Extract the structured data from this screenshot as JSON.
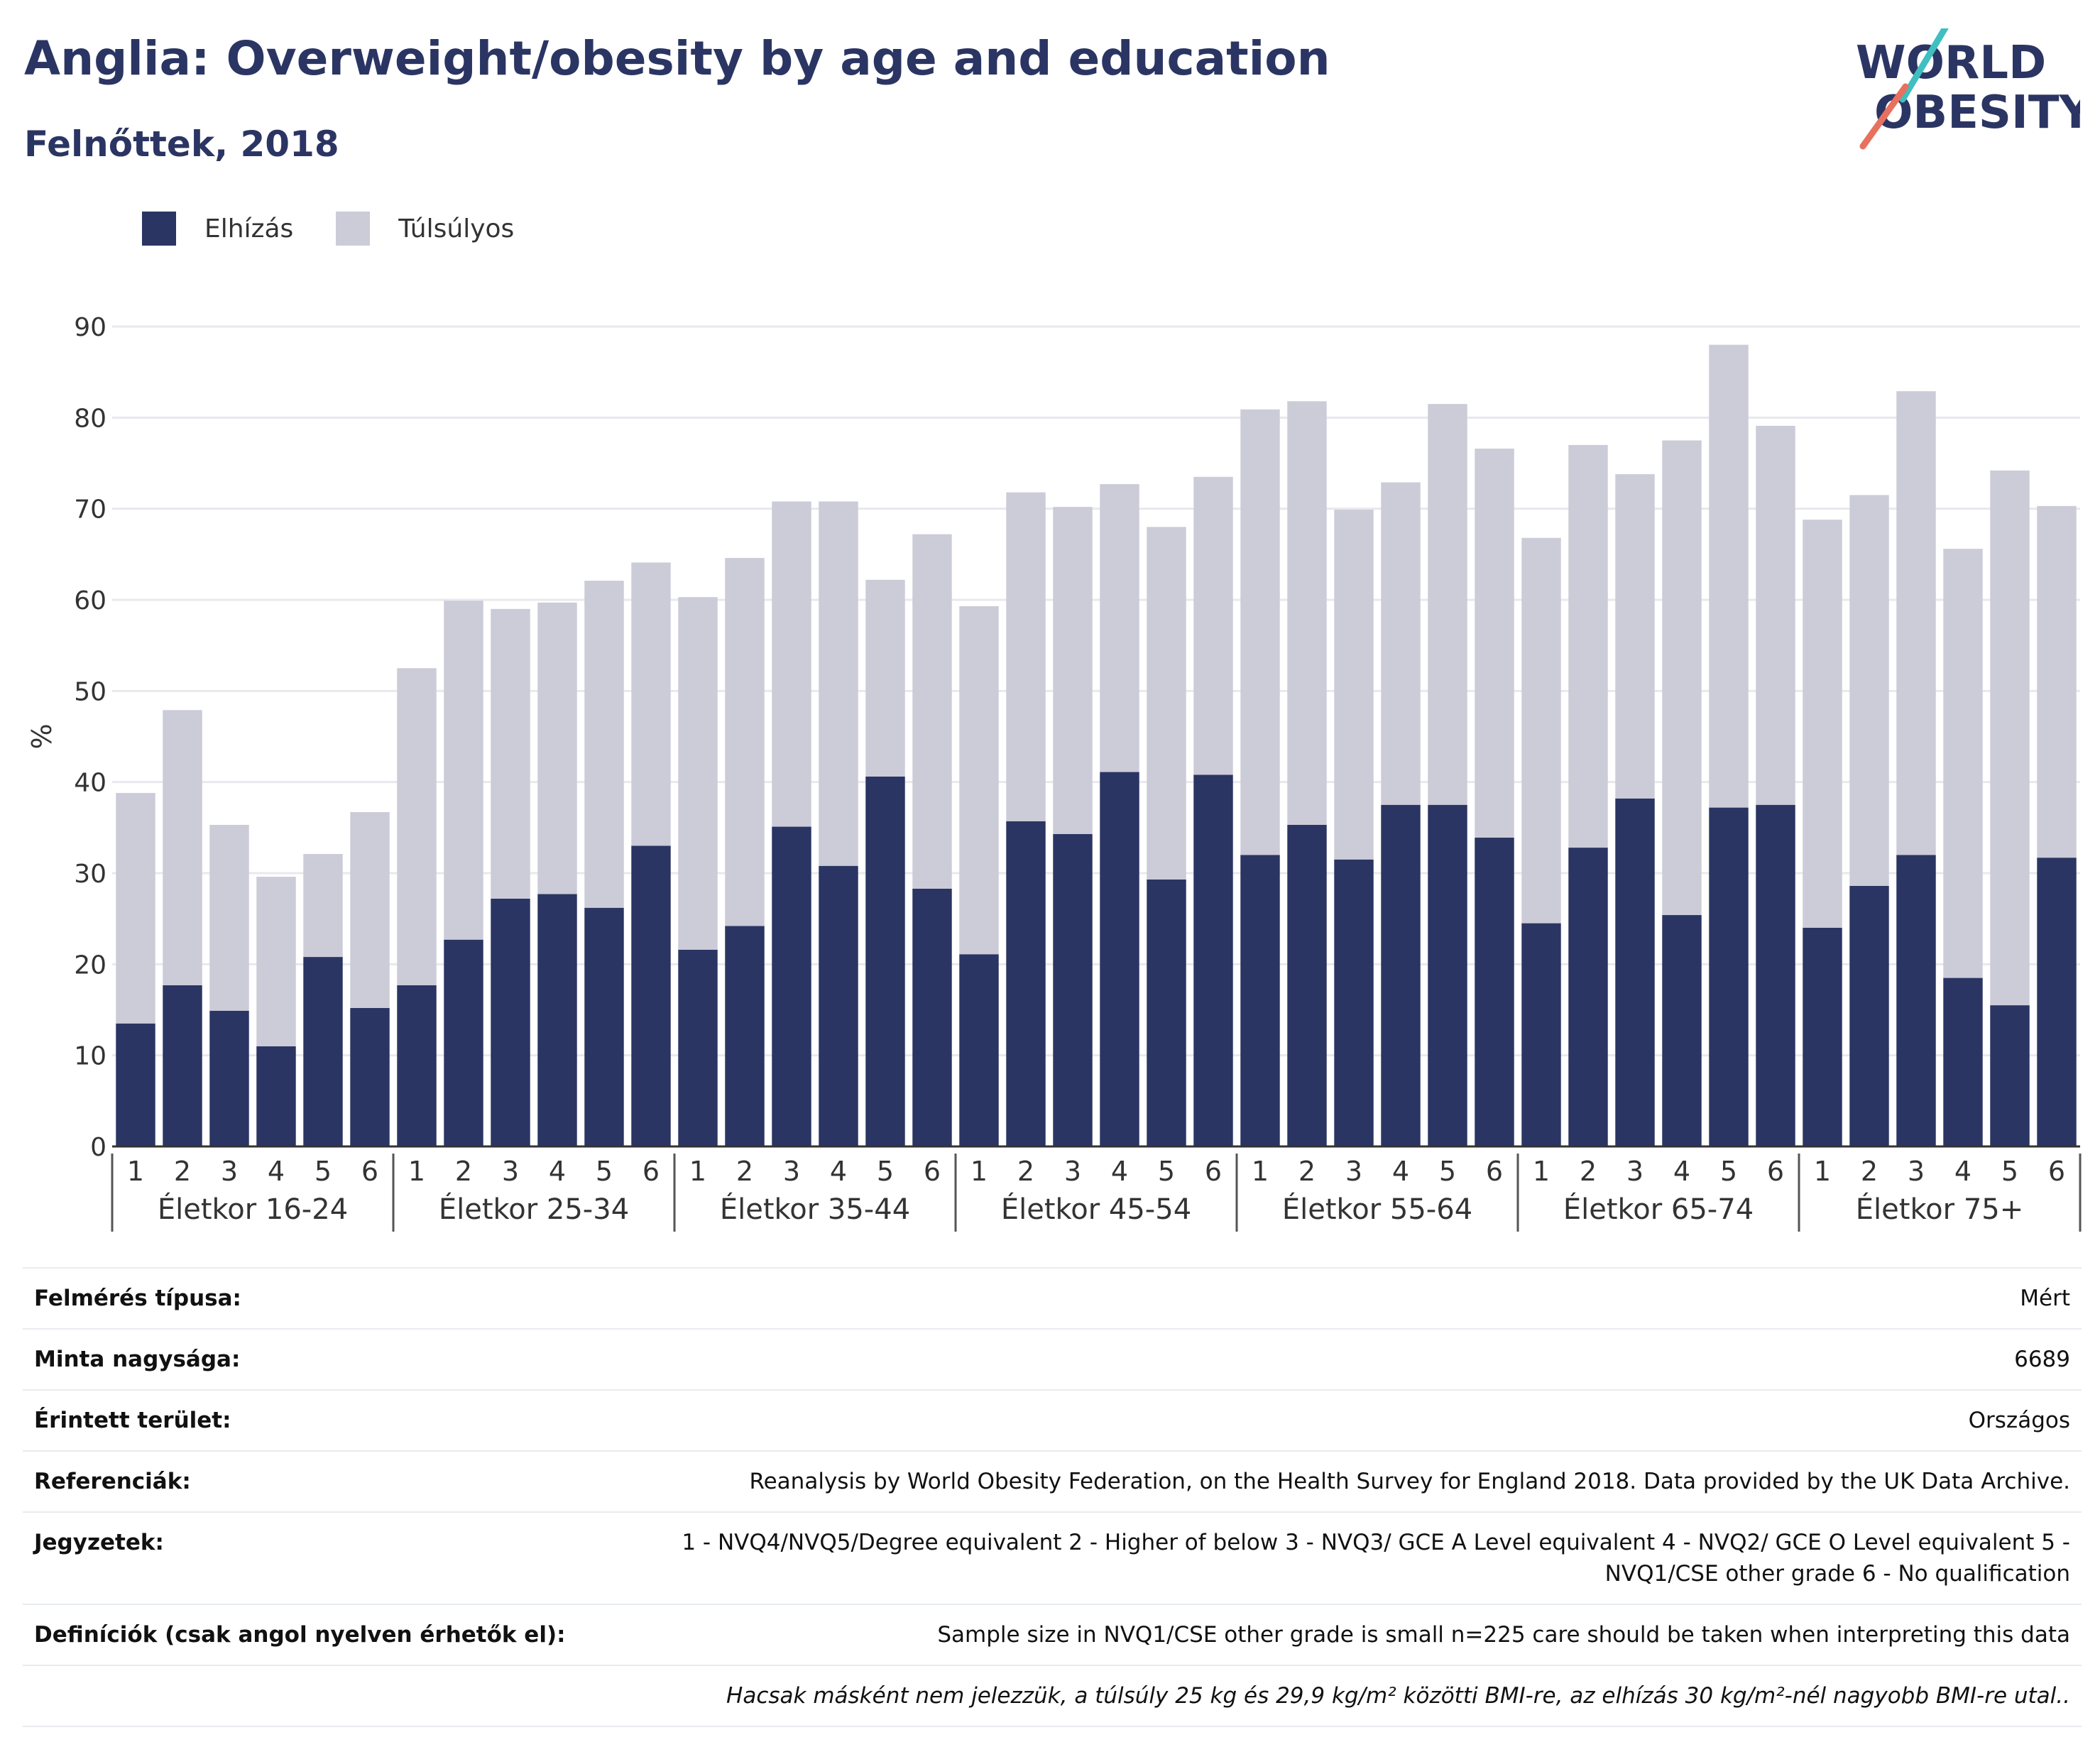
{
  "header": {
    "title": "Anglia: Overweight/obesity by age and education",
    "subtitle": "Felnőttek, 2018"
  },
  "logo": {
    "line1": "WORLD",
    "line2": "OBESITY",
    "accent_teal": "#3fbfbf",
    "accent_coral": "#e8705f"
  },
  "legend": [
    {
      "label": "Elhízás",
      "color": "#2b3563"
    },
    {
      "label": "Túlsúlyos",
      "color": "#cbccd8"
    }
  ],
  "chart_data": {
    "type": "bar",
    "stacked": true,
    "ylabel": "%",
    "ylim": [
      0,
      90
    ],
    "yticks": [
      0,
      10,
      20,
      30,
      40,
      50,
      60,
      70,
      80,
      90
    ],
    "grid": true,
    "legend_position": "top-left",
    "groups": [
      "Életkor 16-24",
      "Életkor 25-34",
      "Életkor 35-44",
      "Életkor 45-54",
      "Életkor 55-64",
      "Életkor 65-74",
      "Életkor 75+"
    ],
    "categories": [
      "1",
      "2",
      "3",
      "4",
      "5",
      "6"
    ],
    "series": [
      {
        "name": "Elhízás",
        "color": "#2b3563",
        "values": [
          [
            13.5,
            17.7,
            14.9,
            11.0,
            20.8,
            15.2
          ],
          [
            17.7,
            22.7,
            27.2,
            27.7,
            26.2,
            33.0
          ],
          [
            21.6,
            24.2,
            35.1,
            30.8,
            40.6,
            28.3
          ],
          [
            21.1,
            35.7,
            34.3,
            41.1,
            29.3,
            40.8
          ],
          [
            32.0,
            35.3,
            31.5,
            37.5,
            37.5,
            33.9
          ],
          [
            24.5,
            32.8,
            38.2,
            25.4,
            37.2,
            37.5
          ],
          [
            24.0,
            28.6,
            32.0,
            18.5,
            15.5,
            31.7
          ]
        ]
      },
      {
        "name": "Túlsúlyos",
        "color": "#cbccd8",
        "values": [
          [
            25.3,
            30.2,
            20.4,
            18.6,
            11.3,
            21.5
          ],
          [
            34.8,
            37.2,
            31.8,
            32.0,
            35.9,
            31.1
          ],
          [
            38.7,
            40.4,
            35.7,
            40.0,
            21.6,
            38.9
          ],
          [
            38.2,
            36.1,
            35.9,
            31.6,
            38.7,
            32.7
          ],
          [
            48.9,
            46.5,
            38.4,
            35.4,
            44.0,
            42.7
          ],
          [
            42.3,
            44.2,
            35.6,
            52.1,
            50.8,
            41.6
          ],
          [
            44.8,
            42.9,
            50.9,
            47.1,
            58.7,
            38.6
          ]
        ]
      }
    ]
  },
  "meta": [
    {
      "key": "Felmérés típusa:",
      "value": "Mért"
    },
    {
      "key": "Minta nagysága:",
      "value": "6689"
    },
    {
      "key": "Érintett terület:",
      "value": "Országos"
    },
    {
      "key": "Referenciák:",
      "value": "Reanalysis by World Obesity Federation, on the Health Survey for England 2018. Data provided by the UK Data Archive."
    },
    {
      "key": "Jegyzetek:",
      "value": "1 - NVQ4/NVQ5/Degree equivalent 2 - Higher of below 3 - NVQ3/ GCE A Level equivalent 4 - NVQ2/ GCE O Level equivalent 5 - NVQ1/CSE other grade 6 - No qualification"
    },
    {
      "key": "Definíciók (csak angol nyelven érhetők el):",
      "value": "Sample size in NVQ1/CSE other grade is small n=225 care should be taken when interpreting this data"
    }
  ],
  "footnote": "Hacsak másként nem jelezzük, a túlsúly 25 kg és 29,9 kg/m² közötti BMI-re, az elhízás 30 kg/m²-nél nagyobb BMI-re utal.."
}
